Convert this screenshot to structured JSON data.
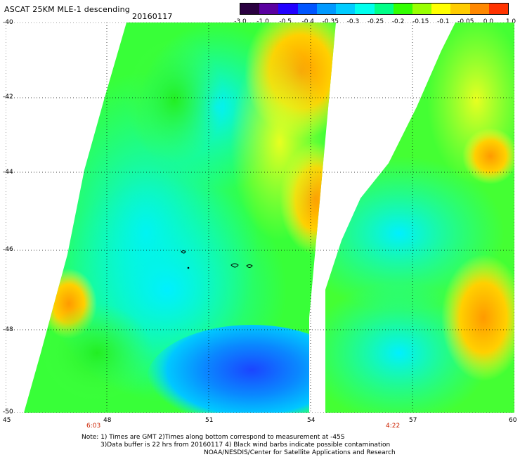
{
  "header": {
    "title": "ASCAT 25KM MLE-1 descending",
    "date": "20160117"
  },
  "colorbar": {
    "labels": [
      "-3.0",
      "-1.0",
      "-0.5",
      "-0.4",
      "-0.35",
      "-0.3",
      "-0.25",
      "-0.2",
      "-0.15",
      "-0.1",
      "-0.05",
      "0.0",
      "1.0"
    ],
    "colors": [
      "#2a0040",
      "#5a00a0",
      "#2200ff",
      "#0055ff",
      "#0099ff",
      "#00ccff",
      "#00ffee",
      "#00ff88",
      "#33ff00",
      "#99ff00",
      "#ffff00",
      "#ffcc00",
      "#ff8800",
      "#ff3300"
    ]
  },
  "axes": {
    "lat_ticks": [
      "-40",
      "-42",
      "-44",
      "-46",
      "-48",
      "-50"
    ],
    "lon_ticks": [
      "45",
      "48",
      "51",
      "54",
      "57",
      "60"
    ]
  },
  "times": [
    "6:03",
    "4:22"
  ],
  "notes": {
    "line1": "Note: 1) Times are GMT 2)Times along bottom correspond to measurement at -45S",
    "line2": "3)Data buffer is 22 hrs from 20160117 4) Black wind barbs indicate possible contamination",
    "line3": "NOAA/NESDIS/Center for Satellite Applications and Research"
  }
}
